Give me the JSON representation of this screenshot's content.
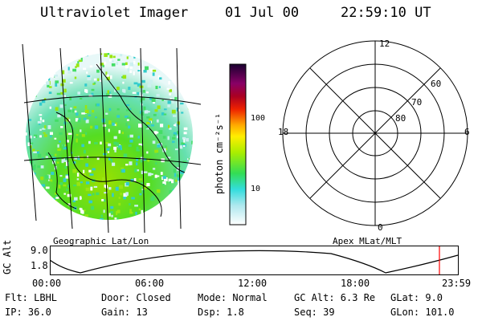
{
  "header": {
    "instrument": "Ultraviolet Imager",
    "date": "01 Jul 00",
    "time": "22:59:10 UT"
  },
  "colorbar": {
    "unit_label": "photon cm⁻²s⁻¹",
    "ticks": [
      "100",
      "10"
    ]
  },
  "left_panel": {
    "caption": "Geographic Lat/Lon"
  },
  "polar_panel": {
    "caption": "Apex MLat/MLT",
    "mlt_labels": {
      "top": "12",
      "left": "18",
      "right": "6",
      "bottom": "0"
    },
    "lat_labels": [
      "60",
      "70",
      "80"
    ]
  },
  "timeline": {
    "y_label": "GC Alt",
    "y_ticks": [
      "9.0",
      "1.8"
    ],
    "x_ticks": [
      "00:00",
      "06:00",
      "12:00",
      "18:00",
      "23:59"
    ],
    "current_marker_color": "#ff0000"
  },
  "status": {
    "row1": {
      "flt": "Flt: LBHL",
      "door": "Door: Closed",
      "mode": "Mode: Normal",
      "gc_alt": "GC Alt: 6.3 Re",
      "glat": "GLat:  9.0"
    },
    "row2": {
      "ip": "IP: 36.0",
      "gain": "Gain: 13",
      "dsp": "Dsp:   1.8",
      "seq": "Seq: 39",
      "glon": "GLon: 101.0"
    }
  }
}
